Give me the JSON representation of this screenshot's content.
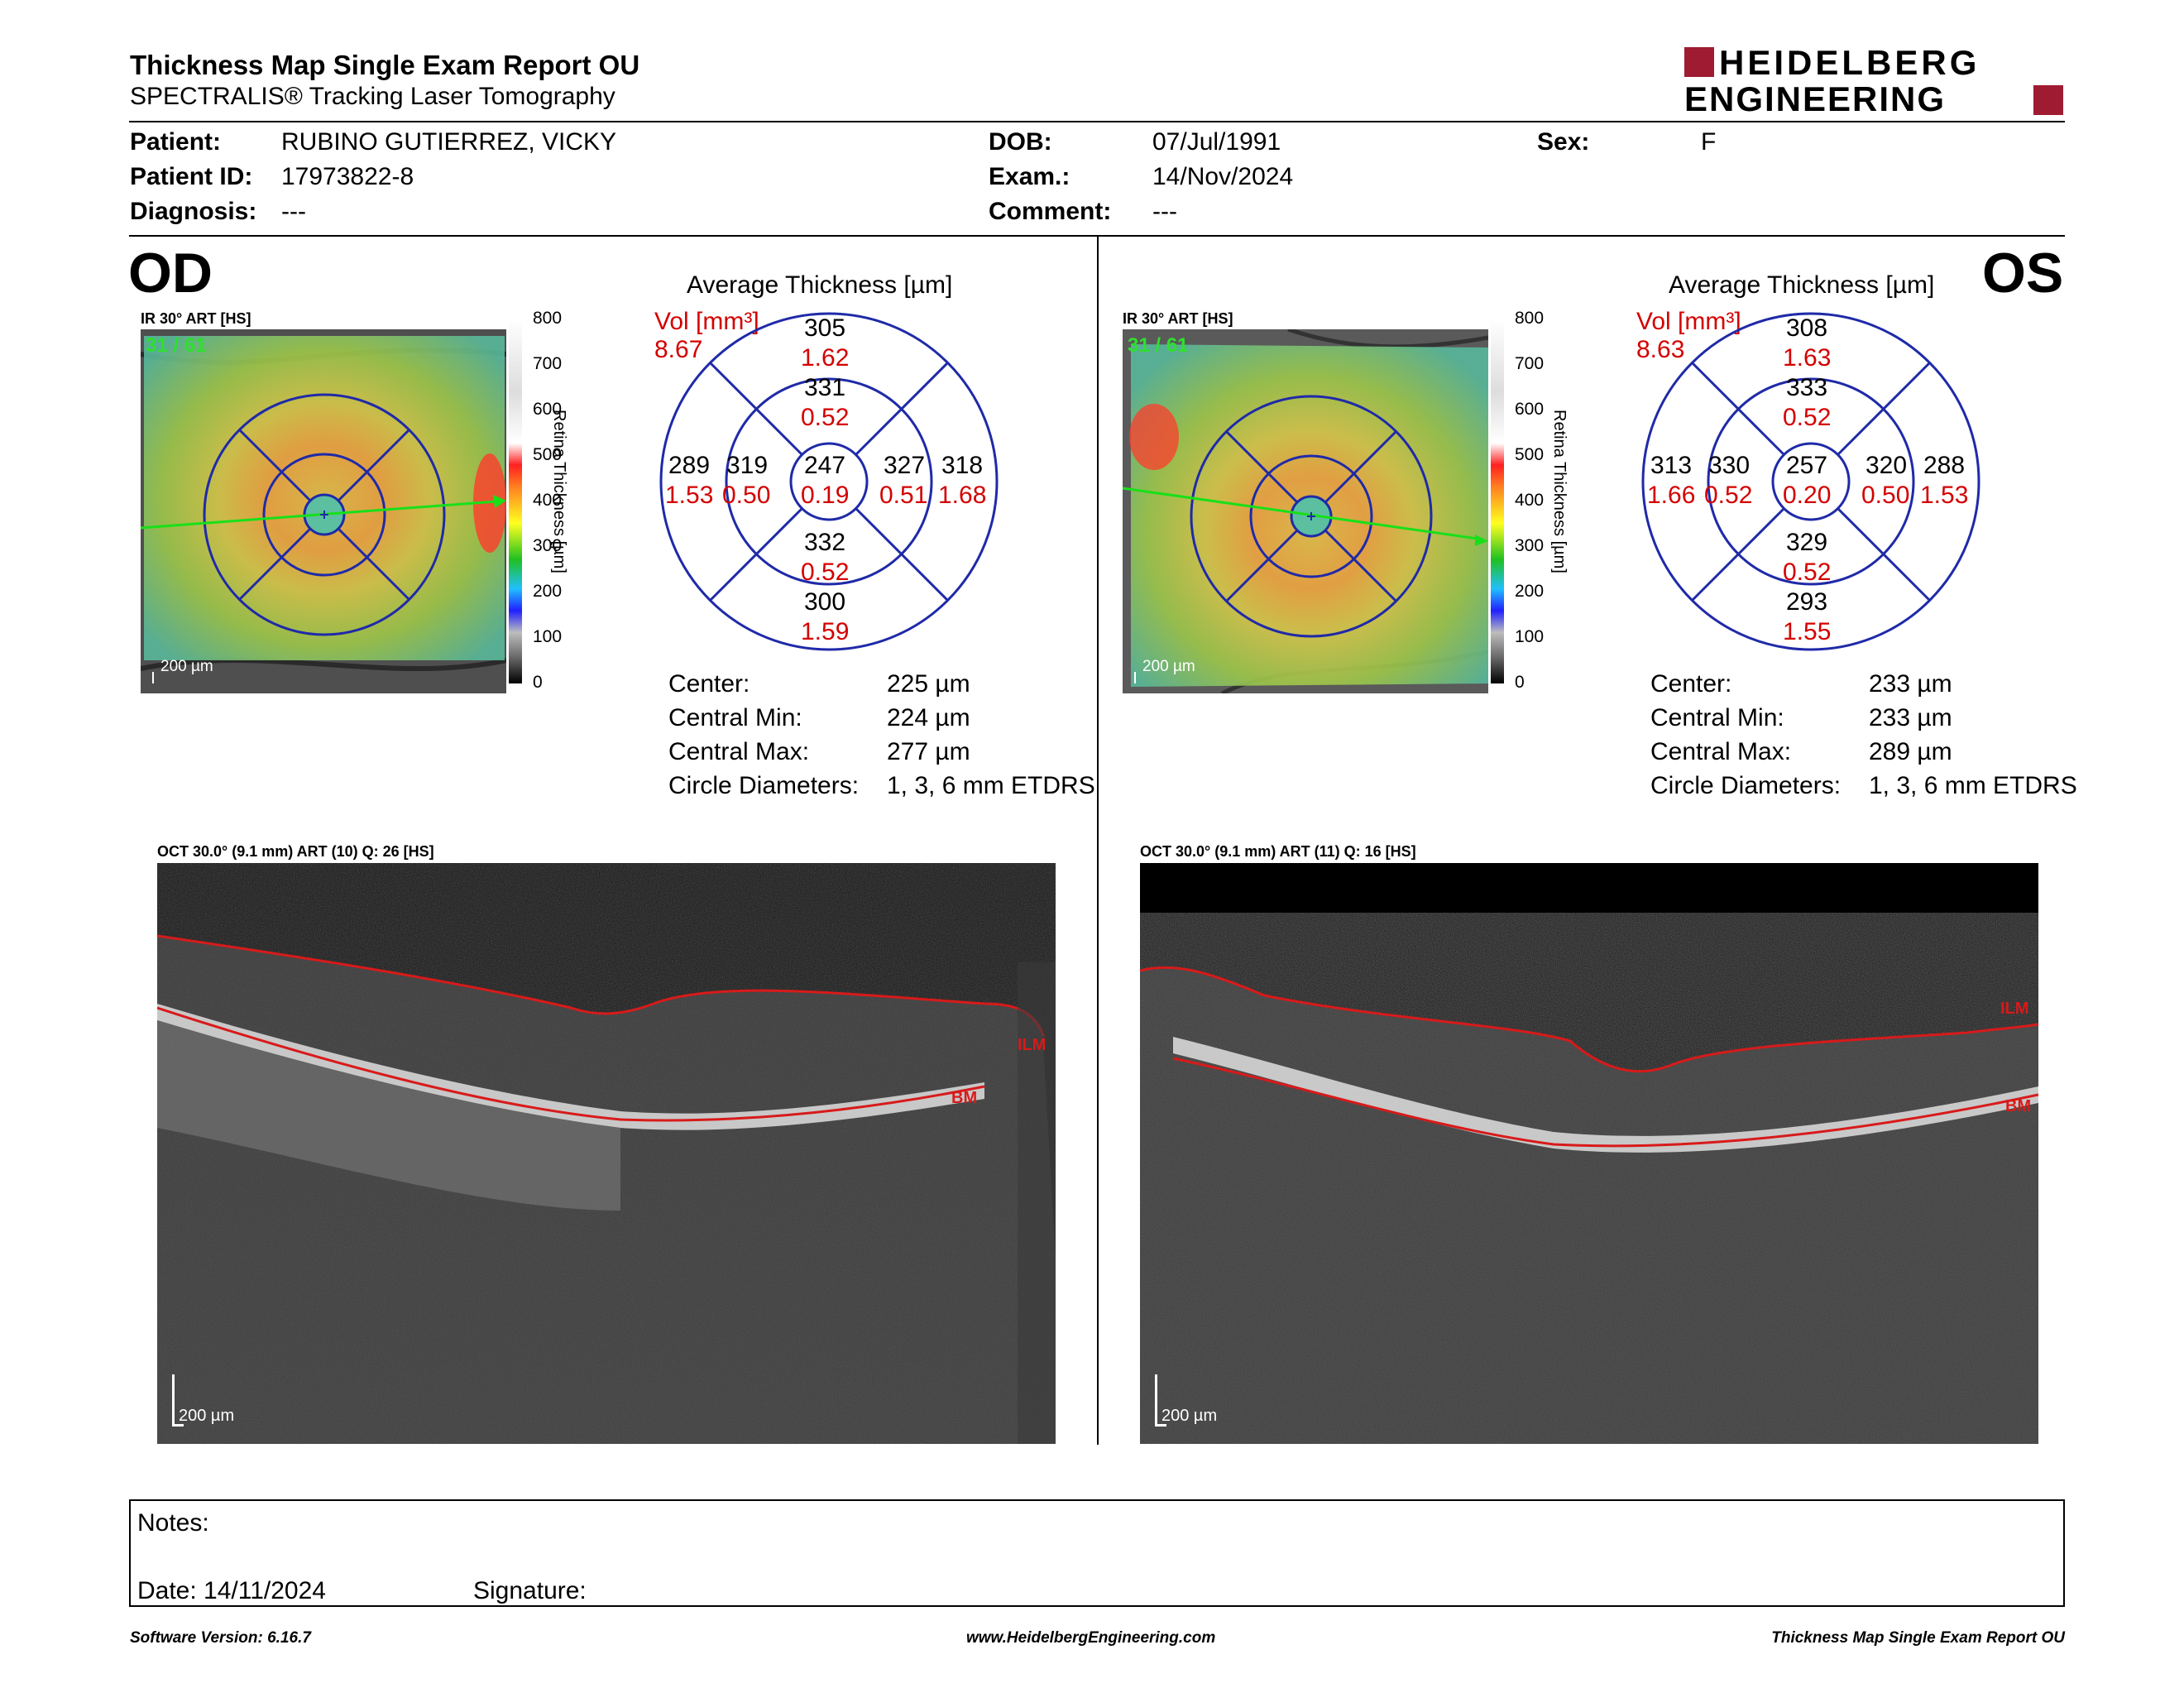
{
  "header": {
    "title": "Thickness Map Single Exam Report OU",
    "subtitle": "SPECTRALIS® Tracking Laser Tomography",
    "logo_line1": "HEIDELBERG",
    "logo_line2": "ENGINEERING"
  },
  "patient": {
    "patient_label": "Patient:",
    "patient_value": "RUBINO GUTIERREZ, VICKY",
    "id_label": "Patient ID:",
    "id_value": "17973822-8",
    "diagnosis_label": "Diagnosis:",
    "diagnosis_value": "---",
    "dob_label": "DOB:",
    "dob_value": "07/Jul/1991",
    "exam_label": "Exam.:",
    "exam_value": "14/Nov/2024",
    "comment_label": "Comment:",
    "comment_value": "---",
    "sex_label": "Sex:",
    "sex_value": "F"
  },
  "colorbar": {
    "ticks": [
      "800",
      "700",
      "600",
      "500",
      "400",
      "300",
      "200",
      "100",
      "0"
    ],
    "axis_label": "Retina  Thickness [µm]"
  },
  "od": {
    "eye": "OD",
    "fundus_label": "IR 30° ART [HS]",
    "frame": "31 / 61",
    "scale": "200 µm",
    "avg_title": "Average Thickness [µm]",
    "vol_label": "Vol [mm³]",
    "vol_value": "8.67",
    "sectors": {
      "center": {
        "t": "247",
        "v": "0.19"
      },
      "inner_top": {
        "t": "331",
        "v": "0.52"
      },
      "inner_bottom": {
        "t": "332",
        "v": "0.52"
      },
      "inner_left": {
        "t": "319",
        "v": "0.50"
      },
      "inner_right": {
        "t": "327",
        "v": "0.51"
      },
      "outer_top": {
        "t": "305",
        "v": "1.62"
      },
      "outer_bottom": {
        "t": "300",
        "v": "1.59"
      },
      "outer_left": {
        "t": "289",
        "v": "1.53"
      },
      "outer_right": {
        "t": "318",
        "v": "1.68"
      }
    },
    "stats": {
      "center_label": "Center:",
      "center_value": "225 µm",
      "min_label": "Central Min:",
      "min_value": "224 µm",
      "max_label": "Central Max:",
      "max_value": "277 µm",
      "diam_label": "Circle Diameters:",
      "diam_value": "1, 3, 6 mm ETDRS"
    },
    "oct_label": "OCT 30.0° (9.1 mm) ART (10) Q: 26 [HS]",
    "oct_scale": "200 µm",
    "ilm": "ILM",
    "bm": "BM"
  },
  "os": {
    "eye": "OS",
    "fundus_label": "IR 30° ART [HS]",
    "frame": "31 / 61",
    "scale": "200 µm",
    "avg_title": "Average Thickness [µm]",
    "vol_label": "Vol [mm³]",
    "vol_value": "8.63",
    "sectors": {
      "center": {
        "t": "257",
        "v": "0.20"
      },
      "inner_top": {
        "t": "333",
        "v": "0.52"
      },
      "inner_bottom": {
        "t": "329",
        "v": "0.52"
      },
      "inner_left": {
        "t": "330",
        "v": "0.52"
      },
      "inner_right": {
        "t": "320",
        "v": "0.50"
      },
      "outer_top": {
        "t": "308",
        "v": "1.63"
      },
      "outer_bottom": {
        "t": "293",
        "v": "1.55"
      },
      "outer_left": {
        "t": "313",
        "v": "1.66"
      },
      "outer_right": {
        "t": "288",
        "v": "1.53"
      }
    },
    "stats": {
      "center_label": "Center:",
      "center_value": "233 µm",
      "min_label": "Central Min:",
      "min_value": "233 µm",
      "max_label": "Central Max:",
      "max_value": "289 µm",
      "diam_label": "Circle Diameters:",
      "diam_value": "1, 3, 6 mm ETDRS"
    },
    "oct_label": "OCT 30.0° (9.1 mm) ART (11) Q: 16 [HS]",
    "oct_scale": "200 µm",
    "ilm": "ILM",
    "bm": "BM"
  },
  "notes": {
    "notes_label": "Notes:",
    "date_label": "Date: 14/11/2024",
    "signature_label": "Signature:"
  },
  "footer": {
    "left": "Software Version: 6.16.7",
    "center": "www.HeidelbergEngineering.com",
    "right": "Thickness Map Single Exam Report OU"
  },
  "colors": {
    "accent_red": "#d40000",
    "logo_red": "#9e1b32",
    "grid_blue": "#1f2aa8"
  }
}
